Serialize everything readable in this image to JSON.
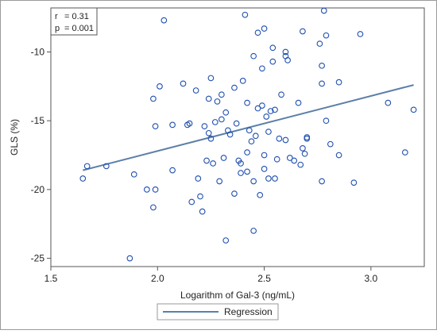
{
  "chart_data": {
    "type": "scatter",
    "title": "",
    "xlabel": "Logarithm of Gal-3 (ng/mL)",
    "ylabel": "GLS (%)",
    "xlim": [
      1.5,
      3.25
    ],
    "ylim": [
      -25.6,
      -6.8
    ],
    "xticks": [
      "1.5",
      "2.0",
      "2.5",
      "3.0"
    ],
    "xtick_values": [
      1.5,
      2.0,
      2.5,
      3.0
    ],
    "yticks": [
      "-10",
      "-15",
      "-20",
      "-25"
    ],
    "ytick_values": [
      -10,
      -15,
      -20,
      -25
    ],
    "grid": false,
    "annotation": {
      "lines": [
        {
          "label": "r",
          "value": "= 0.31"
        },
        {
          "label": "p",
          "value": "= 0.001"
        }
      ],
      "placement": "top-left"
    },
    "legend": {
      "entries": [
        "Regression"
      ],
      "placement": "bottom-center"
    },
    "colors": {
      "points": "#1f4fb0",
      "regression": "#5b7fa8",
      "frame": "#555555"
    },
    "regression": {
      "name": "Regression",
      "x": [
        1.65,
        3.2
      ],
      "y": [
        -18.6,
        -12.4
      ]
    },
    "points": [
      {
        "x": 1.65,
        "y": -19.2
      },
      {
        "x": 1.67,
        "y": -18.3
      },
      {
        "x": 1.76,
        "y": -18.3
      },
      {
        "x": 1.87,
        "y": -25.0
      },
      {
        "x": 1.89,
        "y": -18.9
      },
      {
        "x": 1.95,
        "y": -20.0
      },
      {
        "x": 1.98,
        "y": -21.3
      },
      {
        "x": 1.98,
        "y": -13.4
      },
      {
        "x": 1.99,
        "y": -15.4
      },
      {
        "x": 1.99,
        "y": -20.0
      },
      {
        "x": 2.01,
        "y": -12.5
      },
      {
        "x": 2.03,
        "y": -7.7
      },
      {
        "x": 2.07,
        "y": -15.3
      },
      {
        "x": 2.07,
        "y": -18.6
      },
      {
        "x": 2.12,
        "y": -12.3
      },
      {
        "x": 2.14,
        "y": -15.3
      },
      {
        "x": 2.15,
        "y": -15.2
      },
      {
        "x": 2.16,
        "y": -20.9
      },
      {
        "x": 2.18,
        "y": -12.8
      },
      {
        "x": 2.19,
        "y": -19.2
      },
      {
        "x": 2.2,
        "y": -20.5
      },
      {
        "x": 2.21,
        "y": -21.6
      },
      {
        "x": 2.22,
        "y": -15.4
      },
      {
        "x": 2.23,
        "y": -17.9
      },
      {
        "x": 2.24,
        "y": -13.4
      },
      {
        "x": 2.24,
        "y": -15.9
      },
      {
        "x": 2.25,
        "y": -11.9
      },
      {
        "x": 2.25,
        "y": -16.3
      },
      {
        "x": 2.26,
        "y": -18.1
      },
      {
        "x": 2.27,
        "y": -15.1
      },
      {
        "x": 2.28,
        "y": -13.6
      },
      {
        "x": 2.29,
        "y": -19.4
      },
      {
        "x": 2.3,
        "y": -13.1
      },
      {
        "x": 2.3,
        "y": -14.9
      },
      {
        "x": 2.31,
        "y": -17.7
      },
      {
        "x": 2.32,
        "y": -14.4
      },
      {
        "x": 2.32,
        "y": -23.7
      },
      {
        "x": 2.33,
        "y": -15.7
      },
      {
        "x": 2.34,
        "y": -16.0
      },
      {
        "x": 2.36,
        "y": -12.6
      },
      {
        "x": 2.36,
        "y": -20.3
      },
      {
        "x": 2.37,
        "y": -15.2
      },
      {
        "x": 2.38,
        "y": -17.9
      },
      {
        "x": 2.39,
        "y": -18.1
      },
      {
        "x": 2.39,
        "y": -18.8
      },
      {
        "x": 2.4,
        "y": -12.1
      },
      {
        "x": 2.41,
        "y": -7.3
      },
      {
        "x": 2.42,
        "y": -13.7
      },
      {
        "x": 2.42,
        "y": -17.3
      },
      {
        "x": 2.42,
        "y": -18.7
      },
      {
        "x": 2.43,
        "y": -15.7
      },
      {
        "x": 2.44,
        "y": -16.5
      },
      {
        "x": 2.45,
        "y": -10.3
      },
      {
        "x": 2.45,
        "y": -23.0
      },
      {
        "x": 2.45,
        "y": -19.4
      },
      {
        "x": 2.46,
        "y": -16.1
      },
      {
        "x": 2.47,
        "y": -8.6
      },
      {
        "x": 2.47,
        "y": -14.1
      },
      {
        "x": 2.48,
        "y": -20.4
      },
      {
        "x": 2.49,
        "y": -13.9
      },
      {
        "x": 2.49,
        "y": -11.2
      },
      {
        "x": 2.5,
        "y": -8.3
      },
      {
        "x": 2.5,
        "y": -17.5
      },
      {
        "x": 2.5,
        "y": -18.5
      },
      {
        "x": 2.51,
        "y": -14.7
      },
      {
        "x": 2.52,
        "y": -15.8
      },
      {
        "x": 2.52,
        "y": -19.2
      },
      {
        "x": 2.53,
        "y": -14.3
      },
      {
        "x": 2.54,
        "y": -9.7
      },
      {
        "x": 2.54,
        "y": -10.7
      },
      {
        "x": 2.55,
        "y": -14.2
      },
      {
        "x": 2.55,
        "y": -19.2
      },
      {
        "x": 2.56,
        "y": -17.8
      },
      {
        "x": 2.57,
        "y": -16.3
      },
      {
        "x": 2.58,
        "y": -13.1
      },
      {
        "x": 2.6,
        "y": -10.0
      },
      {
        "x": 2.6,
        "y": -10.3
      },
      {
        "x": 2.6,
        "y": -16.4
      },
      {
        "x": 2.61,
        "y": -10.6
      },
      {
        "x": 2.62,
        "y": -17.7
      },
      {
        "x": 2.64,
        "y": -17.9
      },
      {
        "x": 2.66,
        "y": -13.7
      },
      {
        "x": 2.67,
        "y": -18.2
      },
      {
        "x": 2.68,
        "y": -8.5
      },
      {
        "x": 2.68,
        "y": -17.0
      },
      {
        "x": 2.69,
        "y": -17.4
      },
      {
        "x": 2.7,
        "y": -16.2
      },
      {
        "x": 2.7,
        "y": -16.3
      },
      {
        "x": 2.76,
        "y": -9.4
      },
      {
        "x": 2.77,
        "y": -11.0
      },
      {
        "x": 2.77,
        "y": -12.3
      },
      {
        "x": 2.77,
        "y": -19.4
      },
      {
        "x": 2.78,
        "y": -7.0
      },
      {
        "x": 2.79,
        "y": -8.8
      },
      {
        "x": 2.79,
        "y": -15.0
      },
      {
        "x": 2.81,
        "y": -16.7
      },
      {
        "x": 2.85,
        "y": -12.2
      },
      {
        "x": 2.85,
        "y": -17.5
      },
      {
        "x": 2.92,
        "y": -19.5
      },
      {
        "x": 2.95,
        "y": -8.7
      },
      {
        "x": 3.08,
        "y": -13.7
      },
      {
        "x": 3.16,
        "y": -17.3
      },
      {
        "x": 3.2,
        "y": -14.2
      }
    ]
  }
}
